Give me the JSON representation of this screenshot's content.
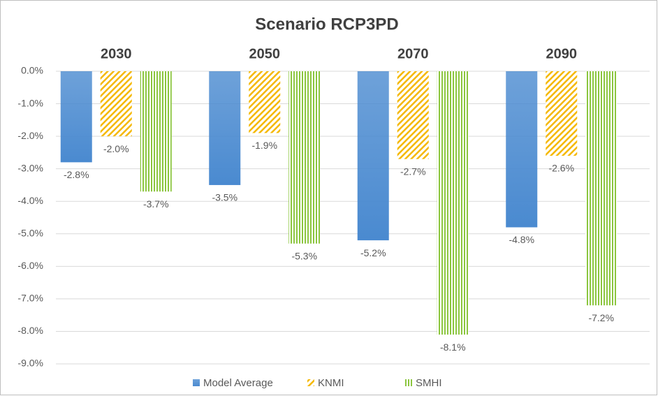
{
  "chart_data": {
    "type": "bar",
    "title": "Scenario RCP3PD",
    "categories": [
      "2030",
      "2050",
      "2070",
      "2090"
    ],
    "series": [
      {
        "name": "Model Average",
        "color": "#4a8ad0",
        "pattern": "solid",
        "values": [
          -2.8,
          -3.5,
          -5.2,
          -4.8
        ],
        "value_labels": [
          "-2.8%",
          "-3.5%",
          "-5.2%",
          "-4.8%"
        ]
      },
      {
        "name": "KNMI",
        "color": "#f5b800",
        "pattern": "diagonal",
        "values": [
          -2.0,
          -1.9,
          -2.7,
          -2.6
        ],
        "value_labels": [
          "-2.0%",
          "-1.9%",
          "-2.7%",
          "-2.6%"
        ]
      },
      {
        "name": "SMHI",
        "color": "#8cc63f",
        "pattern": "vertical",
        "values": [
          -3.7,
          -5.3,
          -8.1,
          -7.2
        ],
        "value_labels": [
          "-3.7%",
          "-5.3%",
          "-8.1%",
          "-7.2%"
        ]
      }
    ],
    "ylim": [
      0,
      -9
    ],
    "yticks": [
      {
        "value": 0,
        "label": "0.0%"
      },
      {
        "value": -1,
        "label": "-1.0%"
      },
      {
        "value": -2,
        "label": "-2.0%"
      },
      {
        "value": -3,
        "label": "-3.0%"
      },
      {
        "value": -4,
        "label": "-4.0%"
      },
      {
        "value": -5,
        "label": "-5.0%"
      },
      {
        "value": -6,
        "label": "-6.0%"
      },
      {
        "value": -7,
        "label": "-7.0%"
      },
      {
        "value": -8,
        "label": "-8.0%"
      },
      {
        "value": -9,
        "label": "-9.0%"
      }
    ],
    "grid": true,
    "legend": "bottom"
  }
}
